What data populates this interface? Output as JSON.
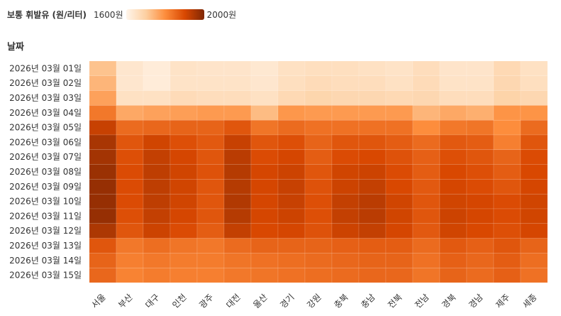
{
  "legend": {
    "title": "보통 휘발유 (원/리터)",
    "min_label": "1600원",
    "max_label": "2000원"
  },
  "colors": {
    "scale": [
      "#fff5eb",
      "#fdd0a2",
      "#fd8d3c",
      "#d94801",
      "#7f2704"
    ]
  },
  "chart_data": {
    "type": "heatmap",
    "title": "보통 휘발유 (원/리터)",
    "ylabel": "날짜",
    "xlabel": "",
    "x": [
      "서울",
      "부산",
      "대구",
      "인천",
      "광주",
      "대전",
      "울산",
      "경기",
      "강원",
      "충북",
      "충남",
      "전북",
      "전남",
      "경북",
      "경남",
      "제주",
      "세종"
    ],
    "y": [
      "2026년 03월 01일",
      "2026년 03월 02일",
      "2026년 03월 03일",
      "2026년 03월 04일",
      "2026년 03월 05일",
      "2026년 03월 06일",
      "2026년 03월 07일",
      "2026년 03월 08일",
      "2026년 03월 09일",
      "2026년 03월 10일",
      "2026년 03월 11일",
      "2026년 03월 12일",
      "2026년 03월 13일",
      "2026년 03월 14일",
      "2026년 03월 15일"
    ],
    "zlim": [
      1600,
      2000
    ],
    "values": [
      [
        1720,
        1640,
        1625,
        1650,
        1645,
        1645,
        1635,
        1655,
        1660,
        1660,
        1655,
        1650,
        1665,
        1645,
        1645,
        1675,
        1655
      ],
      [
        1740,
        1640,
        1625,
        1650,
        1650,
        1650,
        1640,
        1660,
        1670,
        1665,
        1665,
        1655,
        1670,
        1650,
        1650,
        1680,
        1660
      ],
      [
        1770,
        1655,
        1655,
        1670,
        1665,
        1665,
        1655,
        1675,
        1685,
        1680,
        1680,
        1675,
        1680,
        1665,
        1665,
        1690,
        1680
      ],
      [
        1830,
        1760,
        1770,
        1775,
        1780,
        1780,
        1730,
        1785,
        1780,
        1780,
        1780,
        1780,
        1740,
        1760,
        1750,
        1790,
        1790
      ],
      [
        1920,
        1850,
        1855,
        1860,
        1860,
        1880,
        1835,
        1850,
        1840,
        1840,
        1840,
        1840,
        1800,
        1830,
        1835,
        1800,
        1850
      ],
      [
        1955,
        1880,
        1910,
        1890,
        1875,
        1920,
        1880,
        1890,
        1860,
        1880,
        1880,
        1870,
        1850,
        1875,
        1870,
        1820,
        1880
      ],
      [
        1960,
        1890,
        1925,
        1905,
        1880,
        1935,
        1895,
        1905,
        1870,
        1895,
        1900,
        1885,
        1865,
        1890,
        1880,
        1860,
        1895
      ],
      [
        1970,
        1895,
        1930,
        1910,
        1885,
        1940,
        1905,
        1915,
        1880,
        1910,
        1915,
        1895,
        1870,
        1900,
        1890,
        1870,
        1900
      ],
      [
        1975,
        1895,
        1930,
        1910,
        1880,
        1940,
        1905,
        1920,
        1885,
        1915,
        1925,
        1900,
        1875,
        1905,
        1895,
        1880,
        1905
      ],
      [
        1975,
        1895,
        1930,
        1910,
        1880,
        1945,
        1905,
        1920,
        1890,
        1925,
        1935,
        1910,
        1880,
        1910,
        1905,
        1895,
        1910
      ],
      [
        1975,
        1890,
        1925,
        1905,
        1880,
        1940,
        1905,
        1915,
        1890,
        1925,
        1935,
        1910,
        1880,
        1915,
        1905,
        1895,
        1910
      ],
      [
        1950,
        1880,
        1915,
        1895,
        1870,
        1925,
        1900,
        1905,
        1885,
        1915,
        1925,
        1905,
        1875,
        1910,
        1900,
        1890,
        1905
      ],
      [
        1880,
        1830,
        1845,
        1835,
        1830,
        1850,
        1860,
        1860,
        1860,
        1865,
        1870,
        1870,
        1850,
        1875,
        1865,
        1880,
        1860
      ],
      [
        1860,
        1820,
        1830,
        1825,
        1825,
        1835,
        1840,
        1845,
        1850,
        1855,
        1860,
        1860,
        1840,
        1865,
        1855,
        1870,
        1845
      ],
      [
        1855,
        1815,
        1825,
        1820,
        1820,
        1830,
        1835,
        1840,
        1845,
        1850,
        1855,
        1855,
        1835,
        1860,
        1850,
        1865,
        1840
      ]
    ]
  }
}
